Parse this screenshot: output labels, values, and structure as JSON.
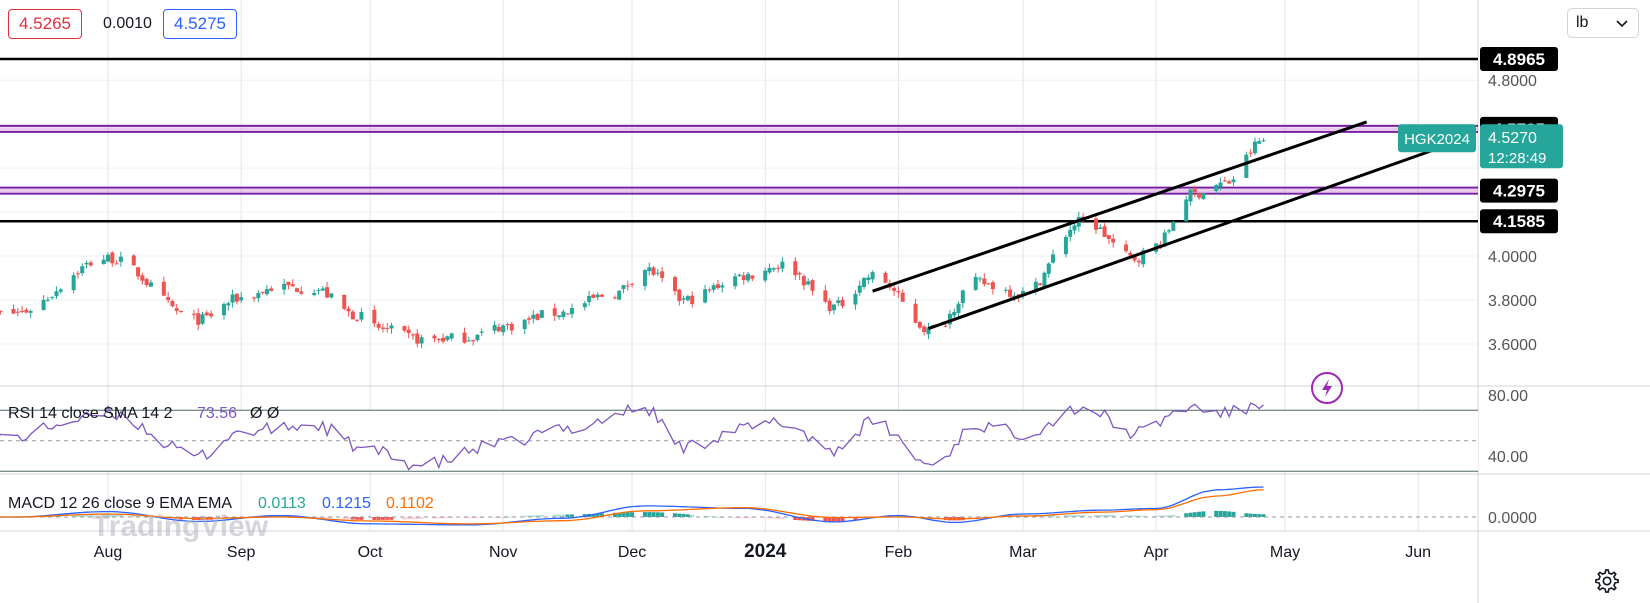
{
  "header": {
    "bid": "4.5265",
    "spread": "0.0010",
    "ask": "4.5275"
  },
  "colors": {
    "bid": "#e0303d",
    "ask": "#2962ff",
    "up": "#26a69a",
    "down": "#ef5350",
    "level_purple": "#7b1fa2",
    "rsi_line": "#7e57c2",
    "macd_line": "#2962ff",
    "signal_line": "#ff6d00"
  },
  "axis_selector": {
    "label": "lb"
  },
  "watermark": {
    "text": "TradingView"
  },
  "settings": {
    "icon": "gear-icon"
  },
  "lightning": {
    "icon": "lightning-icon"
  },
  "chart_data": [
    {
      "type": "candlestick",
      "symbol": "HGK2024",
      "last_price": "4.5270",
      "countdown": "12:28:49",
      "x_ticks": [
        "Aug",
        "Sep",
        "Oct",
        "Nov",
        "Dec",
        "2024",
        "Feb",
        "Mar",
        "Apr",
        "May",
        "Jun"
      ],
      "y_ticks": [
        "3.6000",
        "3.8000",
        "4.0000",
        "4.8000"
      ],
      "ylim": [
        3.55,
        5.05
      ],
      "grid": true,
      "horizontal_levels": [
        {
          "label": "4.8965",
          "value": 4.8965,
          "color": "#000000"
        },
        {
          "label": "4.5785",
          "value": 4.5785,
          "color": "#7b1fa2"
        },
        {
          "label": "4.2975",
          "value": 4.2975,
          "color": "#7b1fa2"
        },
        {
          "label": "4.1585",
          "value": 4.1585,
          "color": "#000000"
        }
      ],
      "trend_channel": {
        "upper": {
          "start": [
            "2024-01-26",
            3.84
          ],
          "end": [
            "2024-05-20",
            4.61
          ]
        },
        "lower": {
          "start": [
            "2024-02-08",
            3.67
          ],
          "end": [
            "2024-06-10",
            4.52
          ]
        }
      },
      "series_anchor_dates": [
        "2023-07-10",
        "2023-08-01",
        "2023-08-22",
        "2023-09-01",
        "2023-09-10",
        "2023-09-18",
        "2023-09-28",
        "2023-10-03",
        "2023-10-13",
        "2023-10-24",
        "2023-11-01",
        "2023-11-13",
        "2023-11-27",
        "2023-12-04",
        "2023-12-13",
        "2023-12-27",
        "2024-01-05",
        "2024-01-17",
        "2024-01-26",
        "2024-02-09",
        "2024-02-19",
        "2024-03-01",
        "2024-03-15",
        "2024-03-27",
        "2024-04-01",
        "2024-04-09",
        "2024-04-17",
        "2024-04-26"
      ],
      "series_anchor_closes": [
        3.74,
        3.99,
        3.71,
        3.81,
        3.86,
        3.85,
        3.73,
        3.67,
        3.62,
        3.63,
        3.68,
        3.74,
        3.83,
        3.94,
        3.8,
        3.91,
        3.96,
        3.77,
        3.91,
        3.66,
        3.88,
        3.83,
        4.16,
        3.99,
        4.05,
        4.28,
        4.33,
        4.527
      ]
    },
    {
      "type": "line",
      "name": "RSI 14 close SMA 14 2",
      "value": "73.56",
      "extra": "Ø Ø",
      "y_ticks": [
        "80.00",
        "40.00"
      ],
      "levels": [
        70,
        50,
        30
      ],
      "ylim": [
        20,
        90
      ],
      "anchor_dates": [
        "2023-07-10",
        "2023-07-24",
        "2023-08-01",
        "2023-08-22",
        "2023-09-01",
        "2023-09-18",
        "2023-10-01",
        "2023-10-13",
        "2023-11-01",
        "2023-11-15",
        "2023-12-04",
        "2023-12-13",
        "2023-12-27",
        "2024-01-05",
        "2024-01-17",
        "2024-01-26",
        "2024-02-09",
        "2024-02-19",
        "2024-03-01",
        "2024-03-15",
        "2024-03-27",
        "2024-04-09",
        "2024-04-17",
        "2024-04-26"
      ],
      "anchor_values": [
        52,
        63,
        68,
        40,
        56,
        60,
        43,
        34,
        48,
        58,
        71,
        46,
        58,
        62,
        44,
        62,
        34,
        60,
        55,
        72,
        55,
        72,
        68,
        73.56
      ]
    },
    {
      "type": "line",
      "name": "MACD 12 26 close 9 EMA EMA",
      "histogram": "0.0113",
      "macd": "0.1215",
      "signal": "0.1102",
      "y_ticks": [
        "0.0000"
      ],
      "ylim": [
        -0.06,
        0.13
      ],
      "anchor_dates": [
        "2023-07-10",
        "2023-08-01",
        "2023-08-22",
        "2023-09-10",
        "2023-10-01",
        "2023-10-24",
        "2023-11-15",
        "2023-12-04",
        "2023-12-27",
        "2024-01-17",
        "2024-02-01",
        "2024-02-14",
        "2024-03-01",
        "2024-03-20",
        "2024-04-01",
        "2024-04-15",
        "2024-04-26"
      ],
      "macd_values": [
        0.0,
        0.022,
        -0.018,
        0.006,
        -0.028,
        -0.032,
        -0.005,
        0.045,
        0.035,
        -0.02,
        0.006,
        -0.022,
        0.012,
        0.028,
        0.035,
        0.11,
        0.1215
      ],
      "signal_values": [
        0.0,
        0.012,
        -0.006,
        0.0,
        -0.016,
        -0.028,
        -0.015,
        0.025,
        0.038,
        -0.002,
        0.0,
        -0.008,
        0.004,
        0.02,
        0.03,
        0.085,
        0.1102
      ]
    }
  ]
}
